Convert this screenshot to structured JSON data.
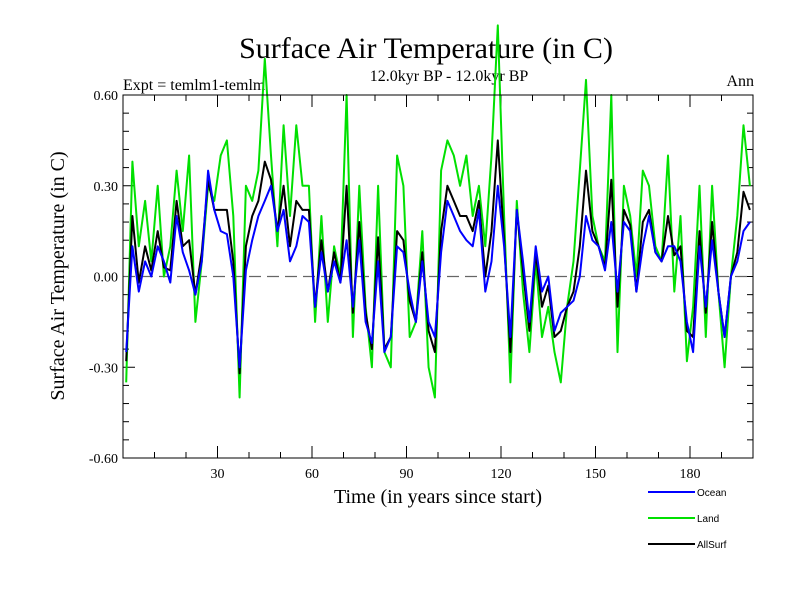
{
  "chart_data": {
    "type": "line",
    "title": "Surface Air Temperature (in C)",
    "subtitle": "12.0kyr BP - 12.0kyr BP",
    "left_label": "Expt = temlm1-temlm",
    "right_label": "Ann",
    "xlabel": "Time (in years since start)",
    "ylabel": "Surface Air Temperature (in C)",
    "xlim": [
      0,
      200
    ],
    "ylim": [
      -0.6,
      0.6
    ],
    "x_ticks": [
      30,
      60,
      90,
      120,
      150,
      180
    ],
    "x_tick_labels": [
      "30",
      "60",
      "90",
      "120",
      "150",
      "180"
    ],
    "y_ticks": [
      -0.6,
      -0.3,
      0.0,
      0.3,
      0.6
    ],
    "y_tick_labels": [
      "-0.60",
      "-0.30",
      "0.00",
      "0.30",
      "0.60"
    ],
    "zero_line": "dashed",
    "legend_position": "bottom-right",
    "x": [
      1,
      3,
      5,
      7,
      9,
      11,
      13,
      15,
      17,
      19,
      21,
      23,
      25,
      27,
      29,
      31,
      33,
      35,
      37,
      39,
      41,
      43,
      45,
      47,
      49,
      51,
      53,
      55,
      57,
      59,
      61,
      63,
      65,
      67,
      69,
      71,
      73,
      75,
      77,
      79,
      81,
      83,
      85,
      87,
      89,
      91,
      93,
      95,
      97,
      99,
      101,
      103,
      105,
      107,
      109,
      111,
      113,
      115,
      117,
      119,
      121,
      123,
      125,
      127,
      129,
      131,
      133,
      135,
      137,
      139,
      141,
      143,
      145,
      147,
      149,
      151,
      153,
      155,
      157,
      159,
      161,
      163,
      165,
      167,
      169,
      171,
      173,
      175,
      177,
      179,
      181,
      183,
      185,
      187,
      189,
      191,
      193,
      195,
      197,
      199
    ],
    "series": [
      {
        "name": "Ocean",
        "color": "#0000ff",
        "values": [
          -0.25,
          0.1,
          -0.05,
          0.05,
          0.0,
          0.1,
          0.05,
          -0.02,
          0.2,
          0.08,
          0.02,
          -0.06,
          0.05,
          0.35,
          0.22,
          0.15,
          0.14,
          0.0,
          -0.3,
          0.02,
          0.12,
          0.2,
          0.25,
          0.3,
          0.15,
          0.22,
          0.05,
          0.1,
          0.2,
          0.18,
          -0.1,
          0.08,
          -0.05,
          0.05,
          -0.02,
          0.12,
          -0.1,
          0.12,
          -0.15,
          -0.22,
          0.05,
          -0.25,
          -0.2,
          0.1,
          0.08,
          -0.05,
          -0.15,
          0.05,
          -0.15,
          -0.2,
          0.08,
          0.25,
          0.2,
          0.15,
          0.12,
          0.1,
          0.22,
          -0.05,
          0.05,
          0.3,
          0.1,
          -0.2,
          0.22,
          0.05,
          -0.15,
          0.1,
          -0.05,
          0.0,
          -0.18,
          -0.12,
          -0.1,
          -0.08,
          0.0,
          0.2,
          0.12,
          0.1,
          0.02,
          0.18,
          -0.05,
          0.18,
          0.15,
          -0.05,
          0.1,
          0.2,
          0.08,
          0.05,
          0.1,
          0.1,
          0.05,
          -0.15,
          -0.25,
          0.1,
          -0.1,
          0.12,
          -0.05,
          -0.2,
          0.0,
          0.05,
          0.15,
          0.18
        ]
      },
      {
        "name": "Land",
        "color": "#00e000",
        "values": [
          -0.35,
          0.38,
          0.1,
          0.25,
          0.05,
          0.3,
          0.0,
          0.1,
          0.35,
          0.15,
          0.4,
          -0.15,
          0.05,
          0.3,
          0.25,
          0.4,
          0.45,
          0.2,
          -0.4,
          0.3,
          0.25,
          0.35,
          0.72,
          0.4,
          0.1,
          0.5,
          0.2,
          0.5,
          0.3,
          0.3,
          -0.15,
          0.2,
          -0.15,
          0.1,
          0.0,
          0.6,
          -0.2,
          0.3,
          -0.1,
          -0.3,
          0.3,
          -0.25,
          -0.3,
          0.4,
          0.3,
          -0.2,
          -0.15,
          0.15,
          -0.3,
          -0.4,
          0.35,
          0.45,
          0.4,
          0.3,
          0.4,
          0.2,
          0.3,
          0.1,
          0.4,
          0.83,
          0.2,
          -0.35,
          0.25,
          -0.05,
          -0.25,
          0.05,
          -0.2,
          -0.1,
          -0.25,
          -0.35,
          -0.1,
          0.05,
          0.35,
          0.65,
          0.2,
          0.1,
          0.05,
          0.6,
          -0.25,
          0.3,
          0.2,
          0.0,
          0.35,
          0.3,
          0.1,
          0.05,
          0.4,
          -0.05,
          0.2,
          -0.28,
          -0.1,
          0.3,
          -0.2,
          0.3,
          -0.05,
          -0.3,
          0.0,
          0.2,
          0.5,
          0.3
        ]
      },
      {
        "name": "AllSurf",
        "color": "#000000",
        "values": [
          -0.28,
          0.2,
          -0.02,
          0.1,
          0.02,
          0.15,
          0.03,
          0.02,
          0.25,
          0.1,
          0.12,
          -0.06,
          0.08,
          0.32,
          0.22,
          0.22,
          0.22,
          0.05,
          -0.32,
          0.1,
          0.2,
          0.25,
          0.38,
          0.32,
          0.15,
          0.3,
          0.1,
          0.25,
          0.22,
          0.22,
          -0.1,
          0.12,
          -0.05,
          0.08,
          -0.02,
          0.3,
          -0.12,
          0.18,
          -0.12,
          -0.24,
          0.13,
          -0.24,
          -0.2,
          0.15,
          0.12,
          -0.08,
          -0.15,
          0.08,
          -0.18,
          -0.25,
          0.15,
          0.3,
          0.25,
          0.2,
          0.2,
          0.15,
          0.25,
          0.0,
          0.15,
          0.45,
          0.12,
          -0.25,
          0.22,
          0.02,
          -0.18,
          0.08,
          -0.1,
          -0.03,
          -0.2,
          -0.18,
          -0.1,
          -0.05,
          0.1,
          0.35,
          0.15,
          0.1,
          0.03,
          0.32,
          -0.1,
          0.22,
          0.17,
          -0.05,
          0.18,
          0.22,
          0.08,
          0.05,
          0.2,
          0.07,
          0.1,
          -0.18,
          -0.2,
          0.15,
          -0.12,
          0.18,
          -0.05,
          -0.2,
          0.0,
          0.08,
          0.28,
          0.22
        ]
      }
    ]
  }
}
